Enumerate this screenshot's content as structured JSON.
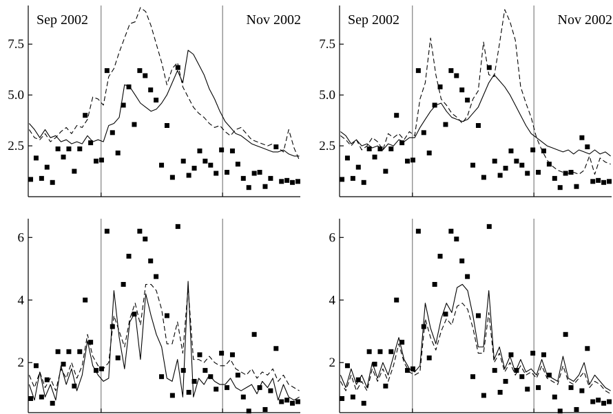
{
  "chart_data": [
    {
      "type": "scatter",
      "panel": "top-left",
      "month_labels": [
        "Sep 2002",
        "Nov 2002"
      ],
      "yticks": [
        2.5,
        5.0,
        7.5
      ],
      "ytick_labels": [
        "2.5",
        "5.0",
        "7.5"
      ],
      "xlim": [
        0,
        56
      ],
      "ylim": [
        0,
        9.4
      ],
      "vlines": [
        15,
        40
      ],
      "grid": false,
      "series": [
        {
          "style": "markers",
          "y": [
            0.85,
            1.9,
            0.9,
            1.45,
            0.7,
            2.35,
            1.95,
            2.35,
            1.25,
            2.35,
            4.0,
            2.65,
            1.75,
            1.8,
            6.2,
            3.15,
            2.15,
            4.5,
            5.4,
            3.55,
            6.2,
            5.95,
            5.25,
            4.75,
            1.55,
            3.5,
            0.95,
            6.35,
            1.75,
            1.05,
            1.4,
            2.25,
            1.75,
            1.55,
            1.15,
            2.3,
            1.2,
            2.25,
            1.6,
            0.9,
            0.45,
            1.15,
            1.2,
            0.5,
            0.9,
            2.45,
            0.75,
            0.8,
            0.7,
            0.75
          ]
        },
        {
          "style": "solid",
          "y": [
            3.6,
            3.3,
            2.9,
            3.3,
            2.9,
            3.0,
            2.7,
            2.8,
            2.6,
            2.7,
            2.6,
            3.0,
            2.7,
            2.8,
            2.7,
            3.5,
            3.6,
            3.9,
            5.5,
            5.4,
            5.0,
            4.6,
            4.4,
            4.2,
            4.3,
            4.6,
            5.0,
            5.6,
            6.2,
            5.6,
            7.2,
            7.0,
            6.5,
            6.0,
            5.3,
            4.8,
            4.2,
            3.7,
            3.4,
            3.1,
            3.0,
            2.8,
            2.6,
            2.5,
            2.4,
            2.3,
            2.2,
            2.2,
            2.3,
            2.1,
            2.0,
            2.0
          ]
        },
        {
          "style": "dashed",
          "y": [
            3.3,
            2.9,
            2.8,
            3.1,
            2.7,
            2.9,
            3.2,
            3.4,
            3.1,
            3.5,
            3.4,
            3.8,
            4.9,
            4.8,
            4.5,
            5.9,
            6.3,
            7.1,
            7.8,
            8.5,
            8.6,
            9.3,
            9.1,
            8.4,
            7.5,
            6.6,
            5.5,
            6.3,
            6.6,
            5.4,
            4.9,
            4.4,
            4.1,
            3.9,
            3.6,
            3.4,
            3.5,
            3.2,
            3.0,
            3.3,
            3.4,
            3.1,
            2.8,
            2.7,
            2.6,
            2.5,
            2.6,
            2.4,
            2.2,
            3.3,
            2.4,
            1.8
          ]
        }
      ]
    },
    {
      "type": "scatter",
      "panel": "top-right",
      "month_labels": [
        "Sep 2002",
        "Nov 2002"
      ],
      "yticks": [
        2.5,
        5.0,
        7.5
      ],
      "ytick_labels": [
        "2.5",
        "5.0",
        "7.5"
      ],
      "xlim": [
        0,
        56
      ],
      "ylim": [
        0,
        9.4
      ],
      "vlines": [
        15,
        40
      ],
      "grid": false,
      "series": [
        {
          "style": "markers",
          "y": [
            0.85,
            1.9,
            0.9,
            1.45,
            0.7,
            2.35,
            1.95,
            2.35,
            1.25,
            2.35,
            4.0,
            2.65,
            1.75,
            1.8,
            6.2,
            3.15,
            2.15,
            4.5,
            5.4,
            3.55,
            6.2,
            5.95,
            5.25,
            4.75,
            1.55,
            3.5,
            0.95,
            6.35,
            1.75,
            1.05,
            1.4,
            2.25,
            1.75,
            1.55,
            1.15,
            2.3,
            1.2,
            2.25,
            1.6,
            0.9,
            0.45,
            1.15,
            1.2,
            0.5,
            2.9,
            2.45,
            0.75,
            0.8,
            0.7,
            0.75
          ]
        },
        {
          "style": "solid",
          "y": [
            3.2,
            3.0,
            2.6,
            2.8,
            2.5,
            2.6,
            2.4,
            2.5,
            2.3,
            2.6,
            2.5,
            2.8,
            2.7,
            2.9,
            2.9,
            3.4,
            3.8,
            4.2,
            4.5,
            4.6,
            4.2,
            3.9,
            3.8,
            3.7,
            3.8,
            4.1,
            4.4,
            5.0,
            5.6,
            6.0,
            5.7,
            5.4,
            5.0,
            4.5,
            4.0,
            3.5,
            3.1,
            2.9,
            2.7,
            2.5,
            2.4,
            2.3,
            2.2,
            2.3,
            2.1,
            2.3,
            2.2,
            2.1,
            2.3,
            2.1,
            2.2,
            2.0
          ]
        },
        {
          "style": "dashed",
          "y": [
            3.0,
            2.8,
            2.5,
            2.8,
            2.3,
            2.5,
            2.9,
            2.7,
            2.3,
            3.1,
            2.9,
            3.1,
            2.8,
            3.2,
            3.0,
            4.8,
            5.6,
            7.8,
            6.0,
            4.8,
            4.5,
            4.1,
            3.9,
            3.6,
            4.0,
            4.8,
            5.2,
            7.6,
            6.0,
            5.9,
            7.5,
            9.2,
            8.6,
            7.7,
            5.4,
            4.6,
            3.9,
            2.9,
            2.3,
            1.8,
            1.5,
            1.3,
            1.2,
            1.15,
            1.2,
            1.1,
            1.3,
            2.0,
            1.1,
            1.9,
            1.7,
            1.6
          ]
        }
      ]
    },
    {
      "type": "scatter",
      "panel": "bottom-left",
      "month_labels": [],
      "yticks": [
        2,
        4,
        6
      ],
      "ytick_labels": [
        "2",
        "4",
        "6"
      ],
      "xlim": [
        0,
        56
      ],
      "ylim": [
        0.4,
        6.6
      ],
      "vlines": [
        15,
        40
      ],
      "grid": false,
      "series": [
        {
          "style": "markers",
          "y": [
            0.85,
            1.9,
            0.9,
            1.45,
            0.7,
            2.35,
            1.95,
            2.35,
            1.25,
            2.35,
            4.0,
            2.65,
            1.75,
            1.8,
            6.2,
            3.15,
            2.15,
            4.5,
            5.4,
            3.55,
            6.2,
            5.95,
            5.25,
            4.75,
            1.55,
            3.5,
            0.95,
            6.35,
            1.75,
            1.05,
            1.4,
            2.25,
            1.75,
            1.55,
            1.15,
            2.3,
            1.2,
            2.25,
            1.6,
            0.9,
            0.45,
            2.9,
            1.2,
            0.5,
            1.1,
            2.45,
            0.75,
            0.8,
            0.7,
            0.75
          ]
        },
        {
          "style": "solid",
          "y": [
            1.3,
            0.8,
            1.7,
            0.9,
            1.3,
            0.8,
            1.9,
            1.3,
            1.8,
            1.1,
            1.6,
            2.7,
            1.9,
            1.6,
            1.4,
            1.5,
            4.3,
            2.8,
            1.8,
            3.3,
            3.6,
            2.1,
            4.2,
            3.5,
            2.9,
            2.5,
            1.5,
            1.4,
            2.1,
            0.9,
            4.6,
            0.9,
            1.5,
            1.3,
            1.6,
            1.4,
            1.3,
            1.3,
            1.5,
            1.2,
            1.1,
            1.2,
            1.3,
            1.0,
            1.4,
            1.2,
            1.5,
            0.8,
            1.3,
            0.9,
            0.8,
            0.9
          ]
        },
        {
          "style": "dashed",
          "y": [
            1.6,
            1.2,
            1.7,
            1.2,
            1.5,
            1.1,
            1.8,
            1.5,
            2.0,
            1.5,
            1.9,
            2.9,
            2.2,
            1.9,
            1.8,
            2.0,
            3.5,
            3.0,
            2.5,
            3.4,
            3.9,
            3.2,
            4.5,
            4.5,
            4.3,
            3.7,
            2.6,
            2.6,
            3.3,
            2.3,
            4.4,
            2.1,
            2.1,
            2.0,
            2.2,
            2.0,
            1.9,
            1.9,
            2.1,
            1.8,
            1.7,
            1.6,
            1.8,
            1.5,
            1.7,
            1.6,
            1.8,
            1.4,
            1.6,
            1.3,
            1.2,
            1.1
          ]
        }
      ]
    },
    {
      "type": "scatter",
      "panel": "bottom-right",
      "month_labels": [],
      "yticks": [
        2,
        4,
        6
      ],
      "ytick_labels": [
        "2",
        "4",
        "6"
      ],
      "xlim": [
        0,
        56
      ],
      "ylim": [
        0.4,
        6.6
      ],
      "vlines": [
        15,
        40
      ],
      "grid": false,
      "series": [
        {
          "style": "markers",
          "y": [
            0.85,
            1.9,
            0.9,
            1.45,
            0.7,
            2.35,
            1.95,
            2.35,
            1.25,
            2.35,
            4.0,
            2.65,
            1.75,
            1.8,
            6.2,
            3.15,
            2.15,
            4.5,
            5.4,
            3.55,
            6.2,
            5.95,
            5.25,
            4.75,
            1.55,
            3.5,
            0.95,
            6.35,
            1.75,
            1.05,
            1.4,
            2.25,
            1.75,
            1.55,
            1.15,
            2.3,
            1.2,
            2.25,
            1.6,
            0.9,
            0.45,
            2.9,
            1.2,
            0.5,
            1.1,
            2.45,
            0.75,
            0.8,
            0.7,
            0.75
          ]
        },
        {
          "style": "solid",
          "y": [
            1.6,
            1.2,
            1.8,
            1.3,
            1.6,
            1.2,
            2.0,
            1.5,
            2.0,
            1.6,
            2.2,
            2.8,
            2.1,
            1.8,
            1.7,
            1.9,
            3.9,
            3.1,
            2.6,
            3.4,
            3.9,
            3.6,
            4.4,
            4.5,
            4.3,
            3.5,
            2.5,
            2.5,
            4.3,
            2.1,
            2.5,
            1.8,
            2.2,
            1.7,
            2.1,
            1.7,
            1.8,
            1.6,
            2.1,
            1.6,
            1.5,
            1.4,
            2.2,
            1.5,
            1.4,
            1.6,
            2.0,
            1.3,
            1.6,
            1.4,
            1.2,
            1.1
          ]
        },
        {
          "style": "dashed",
          "y": [
            1.4,
            1.1,
            1.6,
            1.1,
            1.4,
            1.1,
            1.8,
            1.4,
            1.8,
            1.4,
            1.9,
            2.6,
            2.0,
            1.7,
            1.6,
            1.7,
            3.4,
            2.8,
            2.4,
            3.0,
            3.4,
            3.2,
            3.8,
            3.9,
            3.7,
            3.1,
            2.3,
            2.3,
            3.6,
            2.0,
            2.3,
            1.7,
            2.0,
            1.6,
            1.9,
            1.6,
            1.7,
            1.5,
            1.9,
            1.5,
            1.4,
            1.3,
            1.9,
            1.4,
            1.3,
            1.5,
            1.7,
            1.2,
            1.4,
            1.3,
            1.1,
            1.0
          ]
        }
      ]
    }
  ]
}
